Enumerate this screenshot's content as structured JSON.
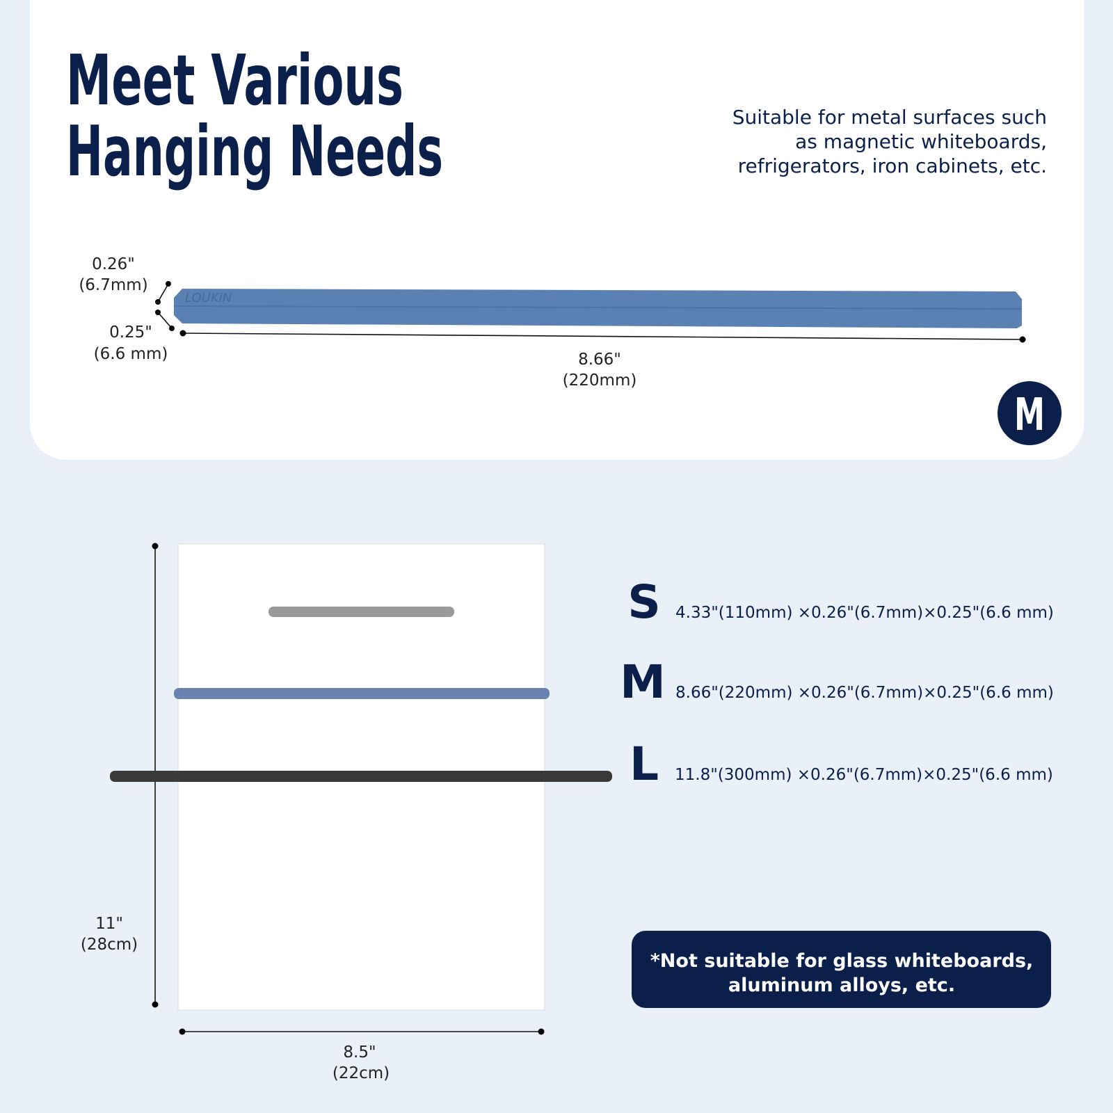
{
  "header": {
    "title": [
      "Meet Various",
      "Hanging Needs"
    ],
    "description": [
      "Suitable for metal surfaces such",
      "as magnetic whiteboards,",
      "refrigerators, iron cabinets, etc."
    ]
  },
  "product": {
    "brand": "LOUKIN",
    "size_badge": "M",
    "height": [
      "0.26\"",
      "(6.7mm)"
    ],
    "width": [
      "0.25\"",
      "(6.6 mm)"
    ],
    "length": [
      "8.66\"",
      "(220mm)"
    ]
  },
  "paper": {
    "height": [
      "11\"",
      "(28cm)"
    ],
    "width": [
      "8.5\"",
      "(22cm)"
    ]
  },
  "sizes": [
    {
      "label": "S",
      "spec": "4.33\"(110mm) ×0.26\"(6.7mm)×0.25\"(6.6 mm)"
    },
    {
      "label": "M",
      "spec": "8.66\"(220mm) ×0.26\"(6.7mm)×0.25\"(6.6 mm)"
    },
    {
      "label": "L",
      "spec": "11.8\"(300mm) ×0.26\"(6.7mm)×0.25\"(6.6 mm)"
    }
  ],
  "note": [
    "*Not suitable for glass whiteboards,",
    "aluminum alloys, etc."
  ]
}
